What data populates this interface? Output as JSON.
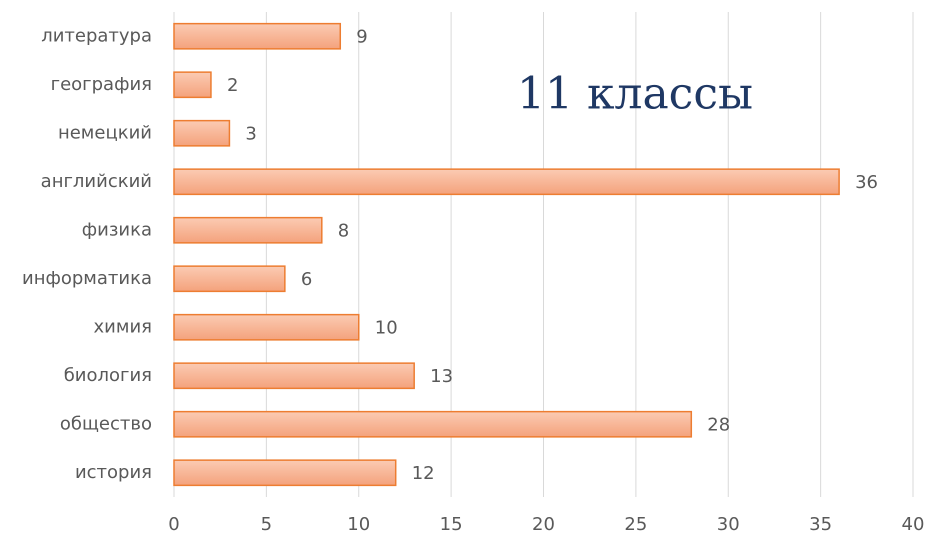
{
  "chart_data": {
    "type": "bar",
    "orientation": "horizontal",
    "title": "11 классы",
    "categories": [
      "литература",
      "география",
      "немецкий",
      "английский",
      "физика",
      "информатика",
      "химия",
      "биология",
      "общество",
      "история"
    ],
    "values": [
      9,
      2,
      3,
      36,
      8,
      6,
      10,
      13,
      28,
      12
    ],
    "color": "#f6a982",
    "edge_color": "#ed7d31",
    "xlim": [
      0,
      40
    ],
    "xticks": [
      0,
      5,
      10,
      15,
      20,
      25,
      30,
      35,
      40
    ],
    "grid": true
  }
}
